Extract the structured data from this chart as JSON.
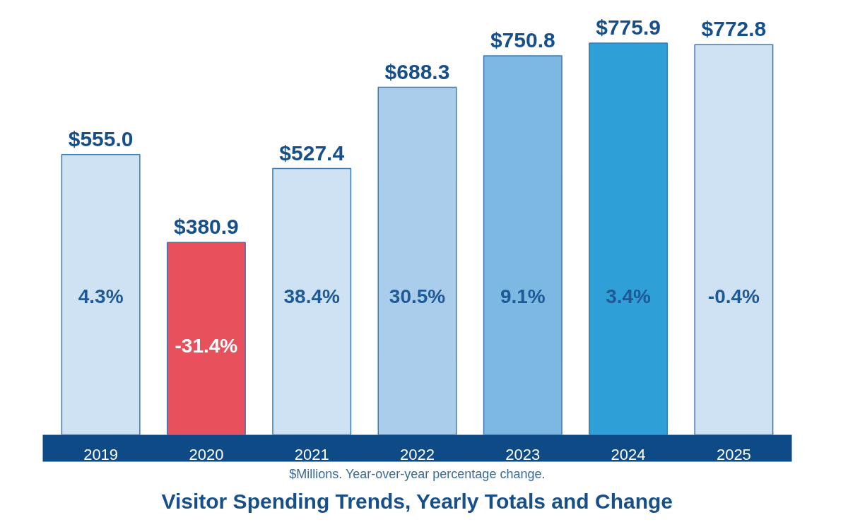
{
  "chart_data": {
    "type": "bar",
    "title": "Visitor Spending Trends, Yearly Totals and Change",
    "subtitle": "$Millions. Year-over-year percentage change.",
    "categories": [
      "2019",
      "2020",
      "2021",
      "2022",
      "2023",
      "2024",
      "2025"
    ],
    "values": [
      555.0,
      380.9,
      527.4,
      688.3,
      750.8,
      775.9,
      772.8
    ],
    "colors": [
      "#cfe2f3",
      "#e8505b",
      "#cfe2f3",
      "#a9cdea",
      "#7db8e2",
      "#2f9fd8",
      "#cfe2f3"
    ],
    "value_labels": [
      "$555.0",
      "$380.9",
      "$527.4",
      "$688.3",
      "$750.8",
      "$775.9",
      "$772.8"
    ],
    "annotations": [
      "4.3%",
      "-31.4%",
      "38.4%",
      "30.5%",
      "9.1%",
      "3.4%",
      "-0.4%"
    ]
  }
}
